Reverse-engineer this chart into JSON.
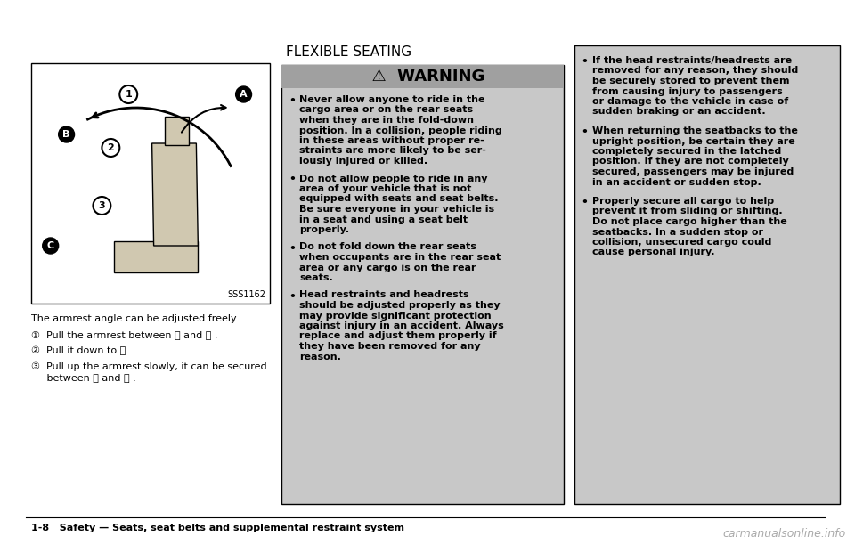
{
  "bg_color": "#ffffff",
  "page_bg": "#ffffff",
  "footer_text": "1-8   Safety — Seats, seat belts and supplemental restraint system",
  "watermark_text": "carmanualsonline.info",
  "image_caption": "SSS1162",
  "left_caption": "The armrest angle can be adjusted freely.",
  "left_steps": [
    "①  Pull the armrest between Ⓐ and Ⓑ .",
    "②  Pull it down to Ⓒ .",
    "③  Pull up the armrest slowly, it can be secured\n     between Ⓑ and Ⓒ ."
  ],
  "middle_heading": "FLEXIBLE SEATING",
  "warning_header": "⚠  WARNING",
  "warning_bg": "#c8c8c8",
  "warning_header_bg": "#a0a0a0",
  "warning_bullets": [
    "Never allow anyone to ride in the\ncargo area or on the rear seats\nwhen they are in the fold-down\nposition. In a collision, people riding\nin these areas without proper re-\nstraints are more likely to be ser-\niously injured or killed.",
    "Do not allow people to ride in any\narea of your vehicle that is not\nequipped with seats and seat belts.\nBe sure everyone in your vehicle is\nin a seat and using a seat belt\nproperly.",
    "Do not fold down the rear seats\nwhen occupants are in the rear seat\narea or any cargo is on the rear\nseats.",
    "Head restraints and headrests\nshould be adjusted properly as they\nmay provide significant protection\nagainst injury in an accident. Always\nreplace and adjust them properly if\nthey have been removed for any\nreason."
  ],
  "right_bg": "#c8c8c8",
  "right_bullets": [
    "If the head restraints/headrests are\nremoved for any reason, they should\nbe securely stored to prevent them\nfrom causing injury to passengers\nor damage to the vehicle in case of\nsudden braking or an accident.",
    "When returning the seatbacks to the\nupright position, be certain they are\ncompletely secured in the latched\nposition. If they are not completely\nsecured, passengers may be injured\nin an accident or sudden stop.",
    "Properly secure all cargo to help\nprevent it from sliding or shifting.\nDo not place cargo higher than the\nseatbacks. In a sudden stop or\ncollision, unsecured cargo could\ncause personal injury."
  ]
}
